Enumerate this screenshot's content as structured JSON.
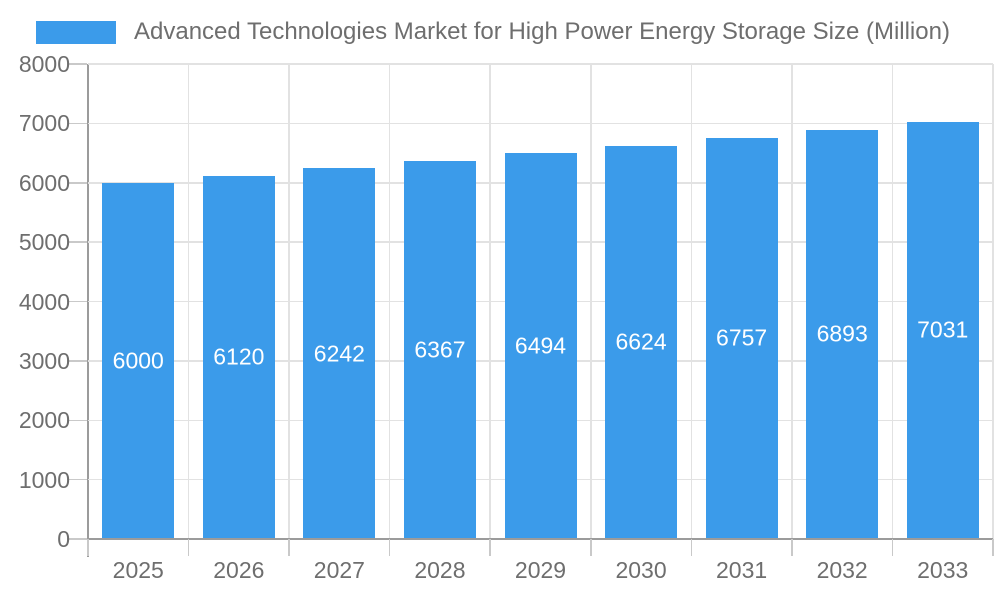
{
  "legend": {
    "label": "Advanced Technologies Market for High Power Energy Storage Size (Million)",
    "swatch_color": "#3b9bea"
  },
  "chart_data": {
    "type": "bar",
    "title": "Advanced Technologies Market for High Power Energy Storage Size (Million)",
    "categories": [
      "2025",
      "2026",
      "2027",
      "2028",
      "2029",
      "2030",
      "2031",
      "2032",
      "2033"
    ],
    "values": [
      6000,
      6120,
      6242,
      6367,
      6494,
      6624,
      6757,
      6893,
      7031
    ],
    "xlabel": "",
    "ylabel": "",
    "ylim": [
      0,
      8000
    ],
    "ytick_step": 1000,
    "ytick_labels": [
      "0",
      "1000",
      "2000",
      "3000",
      "4000",
      "5000",
      "6000",
      "7000",
      "8000"
    ],
    "grid": true,
    "legend_position": "top-left",
    "bar_color": "#3b9bea",
    "value_label_color": "#ffffff",
    "axis_text_color": "#6e6e6e",
    "gridline_color": "#e2e2e2",
    "axis_line_color": "#9b9b9b",
    "background_color": "#ffffff"
  }
}
